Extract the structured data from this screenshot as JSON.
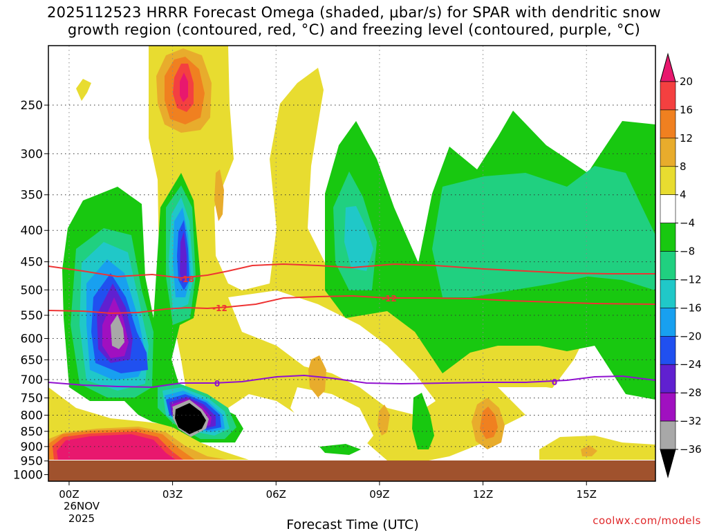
{
  "title": {
    "line1": "2025112523 HRRR Forecast Omega (shaded, μbar/s) for SPAR with dendritic snow",
    "line2": "growth region (contoured, red, °C) and freezing level (contoured, purple, °C)"
  },
  "credit": "coolwx.com/models",
  "chart_data": {
    "type": "heatmap",
    "title": "2025112523 HRRR Forecast Omega (shaded, μbar/s) for SPAR with dendritic snow growth region (contoured, red, °C) and freezing level (contoured, purple, °C)",
    "xlabel": "Forecast Time (UTC)",
    "x_ticks": [
      "00Z",
      "03Z",
      "06Z",
      "09Z",
      "12Z",
      "15Z"
    ],
    "x_date_label": [
      "26NOV",
      "2025"
    ],
    "xlim_hours_from_00Z": [
      -0.6,
      17.0
    ],
    "ylabel": "",
    "y_ticks": [
      250,
      300,
      350,
      400,
      450,
      500,
      550,
      600,
      650,
      700,
      750,
      800,
      850,
      900,
      950,
      1000
    ],
    "ylim_hPa": [
      1025,
      200
    ],
    "y_scale": "pressure (descending upward)",
    "grid": true,
    "colorbar": {
      "ticks": [
        "20",
        "16",
        "12",
        "8",
        "4",
        "−4",
        "−8",
        "−12",
        "−16",
        "−20",
        "−24",
        "−28",
        "−32",
        "−36"
      ],
      "colors": [
        "#e8186e",
        "#f44040",
        "#f08020",
        "#e8ac2c",
        "#e8dc30",
        "#ffffff",
        "#18c810",
        "#20d080",
        "#20c8c8",
        "#18a0f0",
        "#2050f0",
        "#6020d0",
        "#a010c0",
        "#a8a8a8",
        "#000000"
      ]
    },
    "contours": [
      {
        "variable": "temperature",
        "color": "#ee3333",
        "values": [
          "-18",
          "-12"
        ]
      },
      {
        "variable": "freezing level",
        "color": "#9010d0",
        "values": [
          "0",
          "0"
        ]
      }
    ],
    "ground_color": "#a0522d"
  }
}
